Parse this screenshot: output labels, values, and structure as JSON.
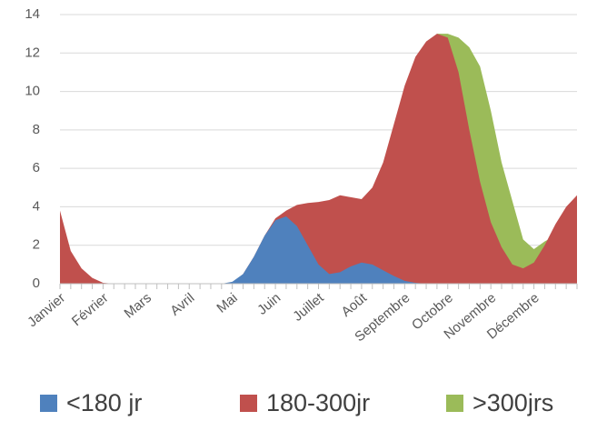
{
  "chart_data": {
    "type": "area",
    "categories": [
      "Janvier",
      null,
      null,
      null,
      "Février",
      null,
      null,
      null,
      "Mars",
      null,
      null,
      null,
      "Avril",
      null,
      null,
      null,
      "Mai",
      null,
      null,
      null,
      "Juin",
      null,
      null,
      null,
      "Juillet",
      null,
      null,
      null,
      "Août",
      null,
      null,
      null,
      "Septembre",
      null,
      null,
      null,
      "Octobre",
      null,
      null,
      null,
      "Novembre",
      null,
      null,
      null,
      "Décembre",
      null,
      null,
      null,
      null
    ],
    "series": [
      {
        "name": ">300jrs",
        "color": "#9bbb59",
        "values": [
          0,
          0,
          0,
          0,
          0,
          0,
          0,
          0,
          0,
          0,
          0,
          0,
          0,
          0,
          0,
          0,
          0,
          0,
          0,
          0,
          0,
          0,
          0,
          0,
          0,
          0,
          0,
          0,
          0,
          0,
          0,
          0,
          8,
          10,
          12,
          13,
          13,
          12.8,
          12.3,
          11.3,
          9,
          6.3,
          4.3,
          2.3,
          1.8,
          2.2,
          2.5,
          2.5,
          2.5
        ]
      },
      {
        "name": "180-300jr",
        "color": "#c0504d",
        "values": [
          3.8,
          1.7,
          0.8,
          0.3,
          0.05,
          0,
          0,
          0,
          0,
          0,
          0,
          0,
          0,
          0,
          0,
          0,
          0,
          0.5,
          1.4,
          2.5,
          3.4,
          3.8,
          4.1,
          4.2,
          4.25,
          4.35,
          4.6,
          4.5,
          4.4,
          5,
          6.3,
          8.3,
          10.3,
          11.8,
          12.6,
          13,
          12.8,
          11,
          8,
          5.3,
          3.2,
          1.9,
          1,
          0.8,
          1.1,
          2,
          3.1,
          4,
          4.6
        ]
      },
      {
        "name": "<180 jr",
        "color": "#4f81bd",
        "values": [
          0,
          0,
          0,
          0,
          0,
          0,
          0,
          0,
          0,
          0,
          0,
          0,
          0,
          0,
          0,
          0,
          0.1,
          0.5,
          1.4,
          2.5,
          3.3,
          3.5,
          3,
          2,
          1,
          0.5,
          0.6,
          0.9,
          1.1,
          1,
          0.7,
          0.4,
          0.15,
          0.05,
          0,
          0,
          0,
          0,
          0,
          0,
          0,
          0,
          0,
          0,
          0,
          0,
          0,
          0,
          0
        ]
      }
    ],
    "ylim": [
      0,
      14
    ],
    "yticks": [
      0,
      2,
      4,
      6,
      8,
      10,
      12,
      14
    ],
    "grid": true
  }
}
